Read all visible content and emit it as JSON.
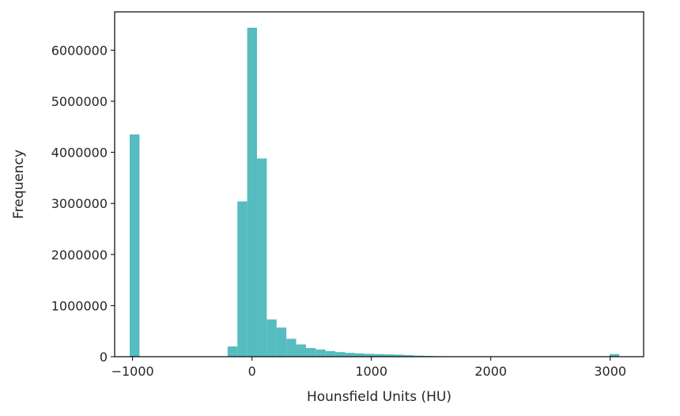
{
  "chart_data": {
    "type": "bar",
    "title": "",
    "xlabel": "Hounsfield Units (HU)",
    "ylabel": "Frequency",
    "xlim": [
      -1150,
      3280
    ],
    "ylim": [
      0,
      6750000
    ],
    "xticks": [
      -1000,
      0,
      1000,
      2000,
      3000
    ],
    "xtick_labels": [
      "−1000",
      "0",
      "1000",
      "2000",
      "3000"
    ],
    "yticks": [
      0,
      1000000,
      2000000,
      3000000,
      4000000,
      5000000,
      6000000
    ],
    "ytick_labels": [
      "0",
      "1000000",
      "2000000",
      "3000000",
      "4000000",
      "5000000",
      "6000000"
    ],
    "grid": false,
    "bar_color": "#56bcbf",
    "bin_width": 82,
    "bins": [
      {
        "x": -1024,
        "value": 4350000
      },
      {
        "x": -204,
        "value": 200000
      },
      {
        "x": -122,
        "value": 3040000
      },
      {
        "x": -40,
        "value": 6440000
      },
      {
        "x": 42,
        "value": 3880000
      },
      {
        "x": 124,
        "value": 730000
      },
      {
        "x": 206,
        "value": 570000
      },
      {
        "x": 288,
        "value": 350000
      },
      {
        "x": 370,
        "value": 240000
      },
      {
        "x": 452,
        "value": 170000
      },
      {
        "x": 534,
        "value": 140000
      },
      {
        "x": 616,
        "value": 110000
      },
      {
        "x": 698,
        "value": 90000
      },
      {
        "x": 780,
        "value": 75000
      },
      {
        "x": 862,
        "value": 65000
      },
      {
        "x": 944,
        "value": 55000
      },
      {
        "x": 1026,
        "value": 50000
      },
      {
        "x": 1108,
        "value": 45000
      },
      {
        "x": 1190,
        "value": 40000
      },
      {
        "x": 1272,
        "value": 30000
      },
      {
        "x": 1354,
        "value": 20000
      },
      {
        "x": 1436,
        "value": 15000
      },
      {
        "x": 1518,
        "value": 10000
      },
      {
        "x": 1600,
        "value": 8000
      },
      {
        "x": 1682,
        "value": 7000
      },
      {
        "x": 1764,
        "value": 6000
      },
      {
        "x": 1846,
        "value": 5000
      },
      {
        "x": 1928,
        "value": 5000
      },
      {
        "x": 2010,
        "value": 4000
      },
      {
        "x": 2092,
        "value": 4000
      },
      {
        "x": 2174,
        "value": 3000
      },
      {
        "x": 2256,
        "value": 3000
      },
      {
        "x": 2338,
        "value": 3000
      },
      {
        "x": 2420,
        "value": 2000
      },
      {
        "x": 2502,
        "value": 2000
      },
      {
        "x": 2584,
        "value": 2000
      },
      {
        "x": 2666,
        "value": 2000
      },
      {
        "x": 2748,
        "value": 2000
      },
      {
        "x": 2830,
        "value": 2000
      },
      {
        "x": 2912,
        "value": 2000
      },
      {
        "x": 2994,
        "value": 50000
      }
    ]
  }
}
